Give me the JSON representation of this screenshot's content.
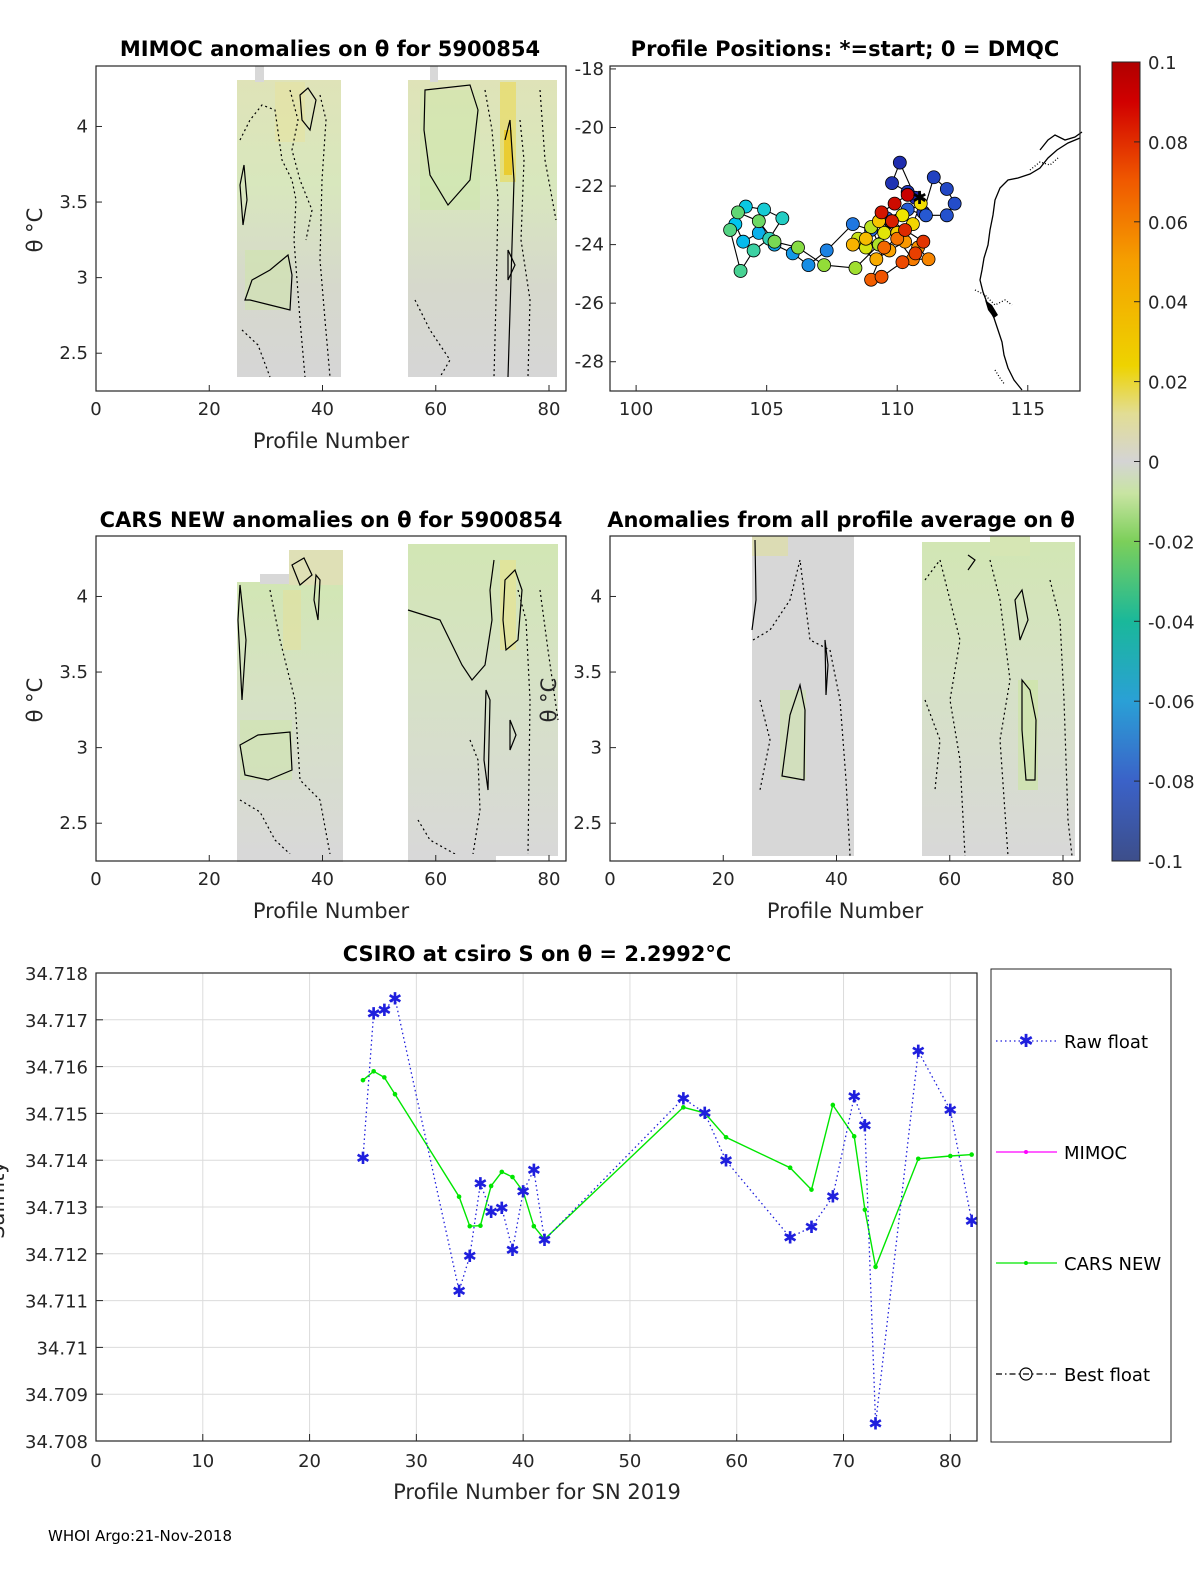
{
  "footer": "WHOI Argo:21-Nov-2018",
  "panels": {
    "mimoc": {
      "title": "MIMOC anomalies on θ  for 5900854",
      "xlabel": "Profile Number",
      "ylabel": "θ °C"
    },
    "positions": {
      "title": "Profile Positions: *=start; 0 = DMQC"
    },
    "cars": {
      "title": "CARS NEW anomalies on θ for 5900854",
      "xlabel": "Profile Number",
      "ylabel": "θ °C"
    },
    "allavg": {
      "title": "Anomalies from all profile average on θ",
      "xlabel": "Profile Number"
    },
    "timeseries": {
      "title": "CSIRO at csiro S on θ = 2.2992°C",
      "xlabel": "Profile Number for SN 2019",
      "ylabel": "Salinity"
    }
  },
  "legend": {
    "raw": "Raw float",
    "mimoc": "MIMOC",
    "cars": "CARS NEW",
    "best": "Best float"
  },
  "colors": {
    "raw": "#1f1fdd",
    "mimoc": "#ff00ff",
    "cars": "#00e600",
    "best": "#000000",
    "anomaly_gray": "#d8d8d8",
    "anomaly_green": "#d0e9a8",
    "anomaly_yellow": "#ece37e"
  },
  "chart_data": [
    {
      "id": "mimoc",
      "type": "heatmap",
      "title": "MIMOC anomalies on θ  for 5900854",
      "xlabel": "Profile Number",
      "ylabel": "θ °C",
      "xlim": [
        0,
        83
      ],
      "ylim": [
        2.25,
        4.4
      ],
      "xticks": [
        0,
        20,
        40,
        60,
        80
      ],
      "yticks": [
        2.5,
        3,
        3.5,
        4
      ],
      "profile_ranges": [
        [
          25,
          43
        ],
        [
          55,
          82
        ]
      ]
    },
    {
      "id": "positions",
      "type": "scatter",
      "title": "Profile Positions: *=start; 0 = DMQC",
      "xlim": [
        99,
        117
      ],
      "ylim": [
        -29,
        -17.9
      ],
      "xticks": [
        100,
        105,
        110,
        115
      ],
      "yticks": [
        -18,
        -20,
        -22,
        -24,
        -26,
        -28
      ],
      "lon": [
        110.7,
        110.1,
        109.8,
        110.4,
        111.0,
        111.4,
        111.9,
        112.2,
        111.9,
        111.1,
        110.4,
        109.6,
        109.0,
        108.3,
        107.3,
        106.6,
        106.0,
        105.3,
        104.7,
        104.1,
        103.8,
        104.2,
        104.9,
        105.6,
        105.1,
        104.5,
        104.0,
        103.6,
        103.9,
        104.7,
        105.3,
        106.2,
        107.2,
        108.4,
        109.3,
        109.0,
        108.5,
        108.8,
        109.5,
        110.2,
        110.9,
        110.6,
        110.0,
        109.3,
        108.8,
        108.3,
        109.2,
        109.7,
        110.3,
        110.8,
        111.2,
        110.6,
        110.0,
        109.5,
        109.0,
        109.4,
        110.2,
        110.7,
        111.0,
        110.3,
        109.8,
        109.4,
        109.9,
        110.4
      ],
      "lat": [
        -22.4,
        -21.2,
        -21.9,
        -22.2,
        -22.9,
        -21.7,
        -22.1,
        -22.6,
        -23.0,
        -23.0,
        -22.8,
        -23.1,
        -23.5,
        -23.3,
        -24.2,
        -24.7,
        -24.3,
        -24.0,
        -23.6,
        -23.9,
        -23.3,
        -22.7,
        -22.8,
        -23.1,
        -23.8,
        -24.2,
        -24.9,
        -23.5,
        -22.9,
        -23.2,
        -23.9,
        -24.1,
        -24.7,
        -24.8,
        -24.0,
        -23.4,
        -23.8,
        -24.1,
        -23.6,
        -23.0,
        -22.6,
        -23.3,
        -23.6,
        -23.2,
        -23.8,
        -24.0,
        -24.5,
        -24.2,
        -23.9,
        -24.1,
        -24.5,
        -24.5,
        -23.8,
        -24.1,
        -25.2,
        -25.1,
        -24.6,
        -24.3,
        -23.9,
        -23.5,
        -23.2,
        -22.9,
        -22.6,
        -22.3
      ],
      "color_min": -0.1,
      "color_max": 0.1,
      "colorbar_ticks": [
        "0.1",
        "0.08",
        "0.06",
        "0.04",
        "0.02",
        "0",
        "-0.02",
        "-0.04",
        "-0.06",
        "-0.08",
        "-0.1"
      ]
    },
    {
      "id": "cars",
      "type": "heatmap",
      "title": "CARS NEW anomalies on θ for 5900854",
      "xlabel": "Profile Number",
      "ylabel": "θ °C",
      "xlim": [
        0,
        83
      ],
      "ylim": [
        2.25,
        4.4
      ],
      "xticks": [
        0,
        20,
        40,
        60,
        80
      ],
      "yticks": [
        2.5,
        3,
        3.5,
        4
      ],
      "profile_ranges": [
        [
          25,
          43
        ],
        [
          55,
          82
        ]
      ]
    },
    {
      "id": "allavg",
      "type": "heatmap",
      "title": "Anomalies from all profile average on θ",
      "xlabel": "Profile Number",
      "xlim": [
        0,
        83
      ],
      "ylim": [
        2.25,
        4.4
      ],
      "xticks": [
        0,
        20,
        40,
        60,
        80
      ],
      "yticks": [
        2.5,
        3,
        3.5,
        4
      ],
      "profile_ranges": [
        [
          25,
          43
        ],
        [
          55,
          82
        ]
      ]
    },
    {
      "id": "timeseries",
      "type": "line",
      "title": "CSIRO at csiro S on θ = 2.2992°C",
      "xlabel": "Profile Number for SN 2019",
      "ylabel": "Salinity",
      "xlim": [
        0,
        82.5
      ],
      "ylim": [
        34.708,
        34.718
      ],
      "xticks": [
        0,
        10,
        20,
        30,
        40,
        50,
        60,
        70,
        80
      ],
      "yticks": [
        34.708,
        34.709,
        34.71,
        34.711,
        34.712,
        34.713,
        34.714,
        34.715,
        34.716,
        34.717,
        34.718
      ],
      "ytick_labels": [
        "34.708",
        "34.709",
        "34.71",
        "34.711",
        "34.712",
        "34.713",
        "34.714",
        "34.715",
        "34.716",
        "34.717",
        "34.718"
      ],
      "series": [
        {
          "name": "Raw float",
          "x": [
            25,
            26,
            27,
            28,
            34,
            35,
            36,
            37,
            38,
            39,
            40,
            41,
            42,
            55,
            57,
            59,
            65,
            67,
            69,
            71,
            72,
            73,
            77,
            80,
            82
          ],
          "values": [
            34.71405,
            34.71713,
            34.71721,
            34.71746,
            34.71121,
            34.71195,
            34.7135,
            34.71289,
            34.71298,
            34.71208,
            34.71333,
            34.71379,
            34.7123,
            34.71532,
            34.71501,
            34.71399,
            34.71235,
            34.71257,
            34.71322,
            34.71536,
            34.71474,
            34.70837,
            34.71633,
            34.71507,
            34.7127
          ]
        },
        {
          "name": "CARS NEW",
          "x": [
            25,
            26,
            27,
            28,
            34,
            35,
            36,
            37,
            38,
            39,
            40,
            41,
            42,
            55,
            57,
            59,
            65,
            67,
            69,
            71,
            72,
            73,
            77,
            80,
            82
          ],
          "values": [
            34.71571,
            34.7159,
            34.71577,
            34.71541,
            34.71322,
            34.71259,
            34.7126,
            34.71345,
            34.71375,
            34.71364,
            34.71333,
            34.71259,
            34.71231,
            34.71513,
            34.71501,
            34.71449,
            34.71384,
            34.71337,
            34.71518,
            34.71451,
            34.71294,
            34.71172,
            34.71403,
            34.71409,
            34.71412
          ]
        },
        {
          "name": "MIMOC",
          "x": [],
          "values": []
        },
        {
          "name": "Best float",
          "x": [],
          "values": []
        }
      ]
    }
  ]
}
